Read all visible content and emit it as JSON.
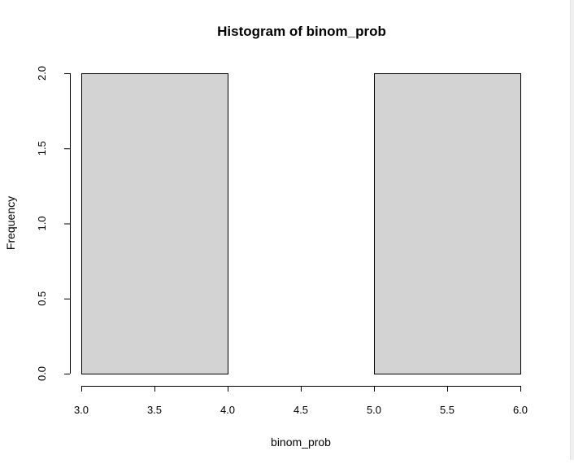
{
  "chart_data": {
    "type": "bar",
    "title": "Histogram of binom_prob",
    "xlabel": "binom_prob",
    "ylabel": "Frequency",
    "bins": [
      {
        "x0": 3.0,
        "x1": 4.0,
        "count": 2
      },
      {
        "x0": 4.0,
        "x1": 5.0,
        "count": 0
      },
      {
        "x0": 5.0,
        "x1": 6.0,
        "count": 2
      }
    ],
    "xlim": [
      3.0,
      6.0
    ],
    "ylim": [
      0.0,
      2.0
    ],
    "xticks": [
      "3.0",
      "3.5",
      "4.0",
      "4.5",
      "5.0",
      "5.5",
      "6.0"
    ],
    "yticks": [
      "0.0",
      "0.5",
      "1.0",
      "1.5",
      "2.0"
    ],
    "bar_fill": "#d3d3d3",
    "bar_stroke": "#000000",
    "grid": false,
    "legend": "none"
  }
}
